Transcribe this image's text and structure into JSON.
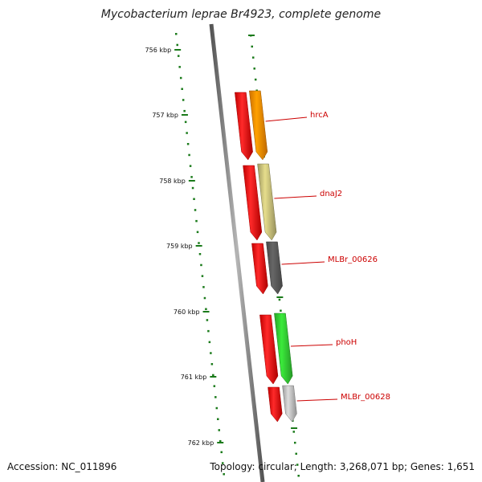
{
  "title": "Mycobacterium leprae Br4923, complete genome",
  "footer": {
    "accession": "Accession: NC_011896",
    "topology": "Topology: circular; Length: 3,268,071 bp; Genes: 1,651"
  },
  "colors": {
    "backbone": "#7a7a7a",
    "ticks": "#1a7a1a",
    "gene_label": "#cc0000"
  },
  "ticks": [
    {
      "label": "756 kbp"
    },
    {
      "label": "757 kbp"
    },
    {
      "label": "758 kbp"
    },
    {
      "label": "759 kbp"
    },
    {
      "label": "760 kbp"
    },
    {
      "label": "761 kbp"
    },
    {
      "label": "762 kbp"
    }
  ],
  "genes": [
    {
      "name": "hrcA",
      "color": "#ff8c00"
    },
    {
      "name": "dnaJ2",
      "color": "#c8c07a"
    },
    {
      "name": "MLBr_00626",
      "color": "#5a5a5a"
    },
    {
      "name": "phoH",
      "color": "#33cc33"
    },
    {
      "name": "MLBr_00628",
      "color": "#c0c0c0"
    }
  ]
}
